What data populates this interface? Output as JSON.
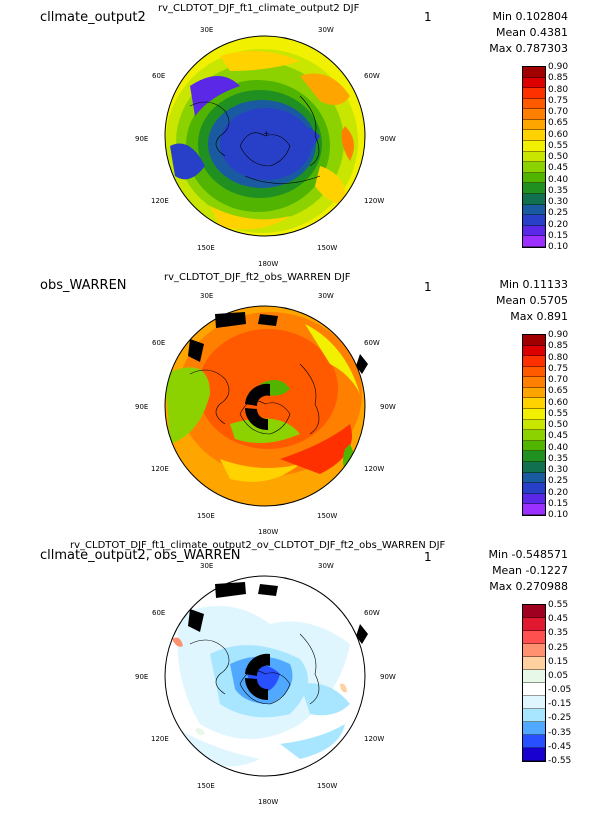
{
  "panels": [
    {
      "name": "cllmate_output2",
      "title": "rv_CLDTOT_DJF_ft1_climate_output2  DJF",
      "one": "1",
      "min": "Min 0.102804",
      "mean": "Mean 0.4381",
      "max": "Max 0.787303",
      "cbar": {
        "levels": [
          "0.90",
          "0.85",
          "0.80",
          "0.75",
          "0.70",
          "0.65",
          "0.60",
          "0.55",
          "0.50",
          "0.45",
          "0.40",
          "0.35",
          "0.30",
          "0.25",
          "0.20",
          "0.15",
          "0.10"
        ],
        "colors": [
          "#a00000",
          "#dd0000",
          "#ff3000",
          "#ff5a00",
          "#ff8000",
          "#ffa500",
          "#ffd200",
          "#f0f000",
          "#c8e600",
          "#8cd200",
          "#50b400",
          "#209020",
          "#107050",
          "#1a5aa0",
          "#2840c8",
          "#5a28e6",
          "#9b30ff"
        ]
      },
      "lon_labels": [
        "30E",
        "30W",
        "60E",
        "60W",
        "90E",
        "90W",
        "120E",
        "120W",
        "150E",
        "150W",
        "180W"
      ]
    },
    {
      "name": "obs_WARREN",
      "title": "rv_CLDTOT_DJF_ft2_obs_WARREN  DJF",
      "one": "1",
      "min": "Min 0.11133",
      "mean": "Mean 0.5705",
      "max": "Max 0.891",
      "cbar": {
        "levels": [
          "0.90",
          "0.85",
          "0.80",
          "0.75",
          "0.70",
          "0.65",
          "0.60",
          "0.55",
          "0.50",
          "0.45",
          "0.40",
          "0.35",
          "0.30",
          "0.25",
          "0.20",
          "0.15",
          "0.10"
        ],
        "colors": [
          "#a00000",
          "#dd0000",
          "#ff3000",
          "#ff5a00",
          "#ff8000",
          "#ffa500",
          "#ffd200",
          "#f0f000",
          "#c8e600",
          "#8cd200",
          "#50b400",
          "#209020",
          "#107050",
          "#1a5aa0",
          "#2840c8",
          "#5a28e6",
          "#9b30ff"
        ]
      },
      "lon_labels": [
        "30E",
        "30W",
        "60E",
        "60W",
        "90E",
        "90W",
        "120E",
        "120W",
        "150E",
        "150W",
        "180W"
      ]
    },
    {
      "name": "cllmate_output2, obs_WARREN",
      "title": "rv_CLDTOT_DJF_ft1_climate_output2_ov_CLDTOT_DJF_ft2_obs_WARREN  DJF",
      "one": "1",
      "min": "Min -0.548571",
      "mean": "Mean -0.1227",
      "max": "Max 0.270988",
      "cbar": {
        "levels": [
          "0.55",
          "0.45",
          "0.35",
          "0.25",
          "0.15",
          "0.05",
          "-0.05",
          "-0.15",
          "-0.25",
          "-0.35",
          "-0.45",
          "-0.55"
        ],
        "colors": [
          "#a00020",
          "#e01830",
          "#ff5050",
          "#ff9070",
          "#ffd0a0",
          "#e8f8e8",
          "#ffffff",
          "#dff6ff",
          "#a8e6ff",
          "#50a8ff",
          "#2850ff",
          "#1800d0"
        ]
      },
      "lon_labels": [
        "30E",
        "30W",
        "60E",
        "60W",
        "90E",
        "90W",
        "120E",
        "120W",
        "150E",
        "150W",
        "180W"
      ]
    }
  ]
}
